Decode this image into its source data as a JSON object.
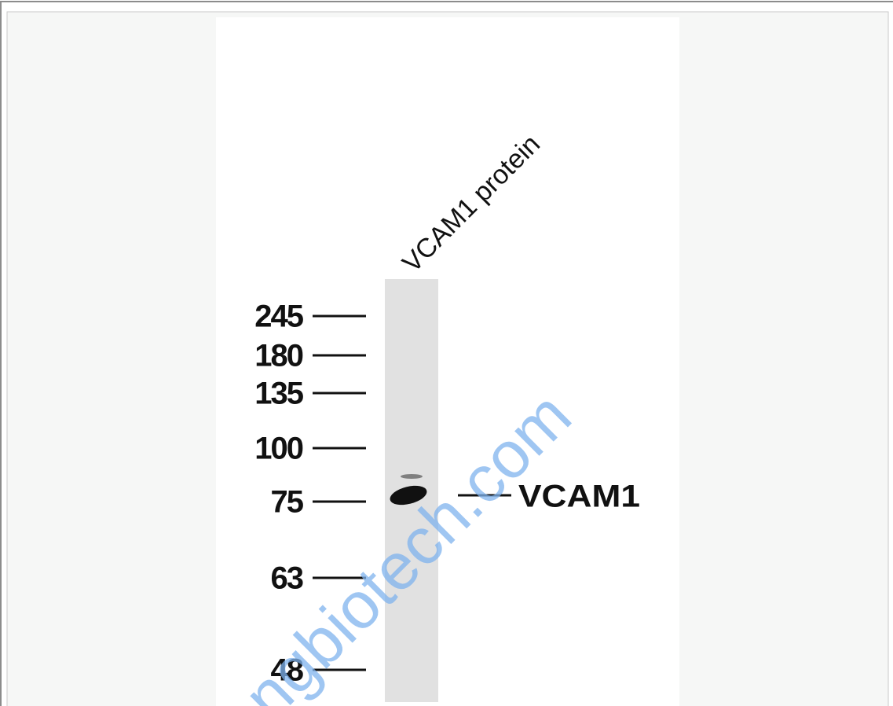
{
  "figure": {
    "lane_label": "VCAM1 protein",
    "markers": [
      "245",
      "180",
      "135",
      "100",
      "75",
      "63",
      "48"
    ],
    "band_label": "VCAM1",
    "watermark": "ngbiotech.com"
  }
}
